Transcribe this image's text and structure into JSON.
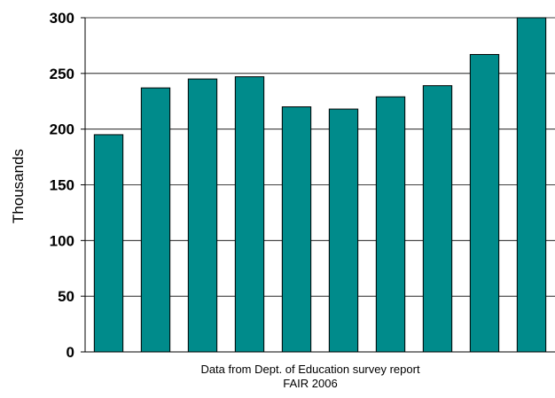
{
  "chart_data": {
    "type": "bar",
    "categories": [
      "",
      "",
      "",
      "",
      "",
      "",
      "",
      "",
      "",
      ""
    ],
    "values": [
      195,
      237,
      245,
      247,
      220,
      218,
      229,
      239,
      267,
      300
    ],
    "ylabel": "Thousands",
    "xlabel_lines": [
      "Data from Dept. of Education survey report",
      "FAIR 2006"
    ],
    "ylim": [
      0,
      300
    ],
    "yticks": [
      0,
      50,
      100,
      150,
      200,
      250,
      300
    ],
    "grid": true,
    "bar_color": "#008B8B",
    "bar_edge_color": "#000000"
  }
}
